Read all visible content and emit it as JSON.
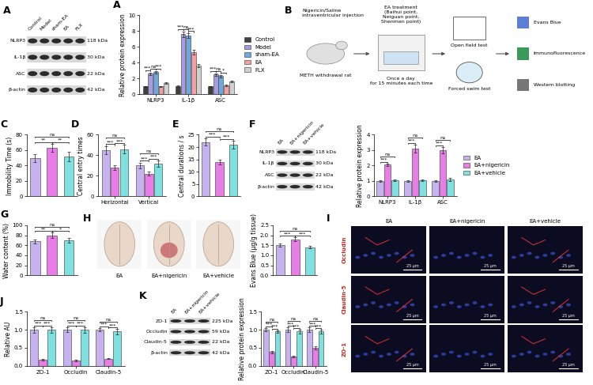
{
  "chart_data": [
    {
      "panel_label": "A",
      "type": "bar",
      "ylabel": "Relative protein expression",
      "categories": [
        "NLRP3",
        "IL-1β",
        "ASC"
      ],
      "series": [
        {
          "name": "Control",
          "color": "#404040",
          "values": [
            1.0,
            1.0,
            1.0
          ],
          "errors": [
            0.08,
            0.1,
            0.08
          ]
        },
        {
          "name": "Model",
          "color": "#a99be0",
          "values": [
            2.6,
            7.6,
            2.5
          ],
          "errors": [
            0.15,
            0.35,
            0.15
          ]
        },
        {
          "name": "sham-EA",
          "color": "#6fa8dc",
          "values": [
            2.8,
            7.4,
            2.3
          ],
          "errors": [
            0.15,
            0.3,
            0.15
          ]
        },
        {
          "name": "EA",
          "color": "#f4a0a0",
          "values": [
            1.0,
            5.3,
            1.1
          ],
          "errors": [
            0.08,
            0.3,
            0.1
          ]
        },
        {
          "name": "FLX",
          "color": "#d0d0d0",
          "values": [
            1.4,
            3.6,
            1.6
          ],
          "errors": [
            0.1,
            0.2,
            0.1
          ]
        }
      ],
      "ylim": [
        0,
        10
      ],
      "yticks": [
        0,
        2,
        4,
        6,
        8,
        10
      ],
      "legend": "right",
      "significance": [
        {
          "group": 0,
          "from": 0,
          "to": 1,
          "label": "***"
        },
        {
          "group": 0,
          "from": 1,
          "to": 2,
          "label": "ns"
        },
        {
          "group": 0,
          "from": 2,
          "to": 3,
          "label": "***"
        },
        {
          "group": 1,
          "from": 0,
          "to": 1,
          "label": "***"
        },
        {
          "group": 1,
          "from": 1,
          "to": 2,
          "label": "ns"
        },
        {
          "group": 1,
          "from": 2,
          "to": 3,
          "label": "***"
        },
        {
          "group": 2,
          "from": 0,
          "to": 1,
          "label": "***"
        },
        {
          "group": 2,
          "from": 2,
          "to": 3,
          "label": "*"
        },
        {
          "group": 2,
          "from": 1,
          "to": 2,
          "label": "ns"
        }
      ]
    },
    {
      "panel_label": "C",
      "type": "bar",
      "ylabel": "Immobility Time (s)",
      "categories": [
        null,
        null,
        null
      ],
      "values": [
        50,
        63,
        52
      ],
      "errors": [
        5,
        5,
        6
      ],
      "colors": [
        "#c7b2f0",
        "#e87de8",
        "#7fe0e0"
      ],
      "tick_labels": "y",
      "ylim": [
        0,
        80
      ],
      "yticks": [
        0,
        20,
        40,
        60,
        80
      ],
      "significance": [
        {
          "from": 0,
          "to": 1,
          "label": "**"
        },
        {
          "from": 1,
          "to": 2,
          "label": "**"
        },
        {
          "from": 0,
          "to": 2,
          "label": "ns"
        }
      ]
    },
    {
      "panel_label": "D",
      "type": "bar",
      "ylabel": "Central entry times",
      "categories": [
        "Horizontal",
        "Vertical"
      ],
      "series": [
        {
          "color": "#c7b2f0",
          "values": [
            45,
            30
          ],
          "errors": [
            4,
            3
          ]
        },
        {
          "color": "#e87de8",
          "values": [
            28,
            22
          ],
          "errors": [
            2,
            2
          ]
        },
        {
          "color": "#7fe0e0",
          "values": [
            46,
            32
          ],
          "errors": [
            4,
            3
          ]
        }
      ],
      "ylim": [
        0,
        60
      ],
      "yticks": [
        0,
        20,
        40,
        60
      ],
      "significance": [
        {
          "group": 0,
          "from": 0,
          "to": 1,
          "label": "***"
        },
        {
          "group": 0,
          "from": 1,
          "to": 2,
          "label": "***"
        },
        {
          "group": 0,
          "from": 0,
          "to": 2,
          "label": "ns"
        },
        {
          "group": 1,
          "from": 0,
          "to": 1,
          "label": "***"
        },
        {
          "group": 1,
          "from": 1,
          "to": 2,
          "label": "***"
        },
        {
          "group": 1,
          "from": 0,
          "to": 2,
          "label": "ns"
        }
      ]
    },
    {
      "panel_label": "E",
      "type": "bar",
      "ylabel": "Central durations / s",
      "categories": [
        null,
        null,
        null
      ],
      "values": [
        22,
        14,
        21
      ],
      "errors": [
        1.5,
        1,
        1.5
      ],
      "colors": [
        "#c7b2f0",
        "#e87de8",
        "#7fe0e0"
      ],
      "tick_labels": "y",
      "ylim": [
        0,
        25
      ],
      "yticks": [
        0,
        5,
        10,
        15,
        20,
        25
      ],
      "significance": [
        {
          "from": 0,
          "to": 1,
          "label": "***"
        },
        {
          "from": 1,
          "to": 2,
          "label": "***"
        },
        {
          "from": 0,
          "to": 2,
          "label": "ns"
        }
      ]
    },
    {
      "type": "bar",
      "ylabel": "Relative protein expression",
      "categories": [
        "NLRP3",
        "IL-1β",
        "ASC"
      ],
      "series": [
        {
          "name": "EA",
          "color": "#c7b2f0",
          "values": [
            1.0,
            1.0,
            1.0
          ],
          "errors": [
            0.05,
            0.06,
            0.06
          ]
        },
        {
          "name": "EA+nigericin",
          "color": "#e87de8",
          "values": [
            2.05,
            3.1,
            3.0
          ],
          "errors": [
            0.08,
            0.25,
            0.2
          ]
        },
        {
          "name": "EA+vehicle",
          "color": "#7fe0e0",
          "values": [
            1.05,
            1.05,
            1.1
          ],
          "errors": [
            0.06,
            0.06,
            0.08
          ]
        }
      ],
      "ylim": [
        0,
        4
      ],
      "yticks": [
        0,
        1,
        2,
        3,
        4
      ],
      "legend": "right",
      "significance": [
        {
          "group": 0,
          "from": 0,
          "to": 1,
          "label": "***"
        },
        {
          "group": 0,
          "from": 0,
          "to": 2,
          "label": "ns"
        },
        {
          "group": 1,
          "from": 0,
          "to": 1,
          "label": "***"
        },
        {
          "group": 1,
          "from": 0,
          "to": 2,
          "label": "ns"
        },
        {
          "group": 2,
          "from": 0,
          "to": 1,
          "label": "***"
        },
        {
          "group": 2,
          "from": 0,
          "to": 2,
          "label": "ns"
        }
      ]
    },
    {
      "panel_label": "G",
      "type": "bar",
      "ylabel": "Water content (%)",
      "categories": [
        null,
        null,
        null
      ],
      "values": [
        68,
        80,
        70
      ],
      "errors": [
        4,
        5,
        5
      ],
      "colors": [
        "#c7b2f0",
        "#e87de8",
        "#7fe0e0"
      ],
      "tick_labels": "y",
      "ylim": [
        0,
        100
      ],
      "yticks": [
        0,
        20,
        40,
        60,
        80,
        100
      ],
      "significance": [
        {
          "from": 0,
          "to": 1,
          "label": "**"
        },
        {
          "from": 1,
          "to": 2,
          "label": "*"
        },
        {
          "from": 0,
          "to": 2,
          "label": "ns"
        }
      ]
    },
    {
      "type": "bar",
      "ylabel": "Evans Blue (μg/g tissue)",
      "categories": [
        null,
        null,
        null
      ],
      "values": [
        1.5,
        1.8,
        1.4
      ],
      "errors": [
        0.07,
        0.1,
        0.05
      ],
      "colors": [
        "#c7b2f0",
        "#e87de8",
        "#7fe0e0"
      ],
      "tick_labels": "y",
      "ylim": [
        0,
        2.5
      ],
      "yticks": [
        {
          "value": 0,
          "label": "0.0"
        },
        0.5,
        {
          "value": 1,
          "label": "1.0"
        },
        1.5,
        {
          "value": 2,
          "label": "2.0"
        },
        2.5
      ],
      "significance": [
        {
          "from": 0,
          "to": 1,
          "label": "***"
        },
        {
          "from": 1,
          "to": 2,
          "label": "***"
        },
        {
          "from": 0,
          "to": 2,
          "label": "ns"
        }
      ]
    },
    {
      "panel_label": "J",
      "type": "bar",
      "ylabel": "Relative AU",
      "categories": [
        "ZO-1",
        "Occludin",
        "Claudin-5"
      ],
      "series": [
        {
          "color": "#c7b2f0",
          "values": [
            1.0,
            1.0,
            1.0
          ],
          "errors": [
            0.08,
            0.07,
            0.05
          ]
        },
        {
          "color": "#e87de8",
          "values": [
            0.17,
            0.15,
            0.2
          ],
          "errors": [
            0.02,
            0.02,
            0.02
          ]
        },
        {
          "color": "#7fe0e0",
          "values": [
            1.0,
            1.0,
            0.95
          ],
          "errors": [
            0.08,
            0.08,
            0.07
          ]
        }
      ],
      "ylim": [
        0,
        1.5
      ],
      "yticks": [
        {
          "value": 0,
          "label": "0.0"
        },
        0.5,
        {
          "value": 1,
          "label": "1.0"
        },
        1.5
      ],
      "significance": [
        {
          "group": 0,
          "from": 0,
          "to": 1,
          "label": "***"
        },
        {
          "group": 0,
          "from": 1,
          "to": 2,
          "label": "***"
        },
        {
          "group": 0,
          "from": 0,
          "to": 2,
          "label": "ns"
        },
        {
          "group": 1,
          "from": 0,
          "to": 1,
          "label": "***"
        },
        {
          "group": 1,
          "from": 1,
          "to": 2,
          "label": "***"
        },
        {
          "group": 1,
          "from": 0,
          "to": 2,
          "label": "ns"
        },
        {
          "group": 2,
          "from": 0,
          "to": 1,
          "label": "***"
        },
        {
          "group": 2,
          "from": 1,
          "to": 2,
          "label": "***"
        },
        {
          "group": 2,
          "from": 0,
          "to": 2,
          "label": "ns"
        }
      ]
    },
    {
      "type": "bar",
      "ylabel": "Relative protein expression",
      "categories": [
        "ZO-1",
        "Occludin",
        "Claudin-5"
      ],
      "series": [
        {
          "color": "#c7b2f0",
          "values": [
            1.0,
            1.0,
            1.0
          ],
          "errors": [
            0.05,
            0.06,
            0.06
          ]
        },
        {
          "color": "#e87de8",
          "values": [
            0.38,
            0.26,
            0.5
          ],
          "errors": [
            0.03,
            0.02,
            0.05
          ]
        },
        {
          "color": "#7fe0e0",
          "values": [
            0.95,
            0.95,
            0.95
          ],
          "errors": [
            0.04,
            0.05,
            0.05
          ]
        }
      ],
      "ylim": [
        0,
        1.5
      ],
      "yticks": [
        {
          "value": 0,
          "label": "0.0"
        },
        0.5,
        {
          "value": 1,
          "label": "1.0"
        },
        1.5
      ],
      "significance": [
        {
          "group": 0,
          "from": 0,
          "to": 1,
          "label": "***"
        },
        {
          "group": 0,
          "from": 1,
          "to": 2,
          "label": "***"
        },
        {
          "group": 0,
          "from": 0,
          "to": 2,
          "label": "ns"
        },
        {
          "group": 1,
          "from": 0,
          "to": 1,
          "label": "***"
        },
        {
          "group": 1,
          "from": 1,
          "to": 2,
          "label": "***"
        },
        {
          "group": 1,
          "from": 0,
          "to": 2,
          "label": "ns"
        },
        {
          "group": 2,
          "from": 0,
          "to": 1,
          "label": "***"
        },
        {
          "group": 2,
          "from": 1,
          "to": 2,
          "label": "***"
        },
        {
          "group": 2,
          "from": 0,
          "to": 2,
          "label": "ns"
        }
      ]
    }
  ],
  "blots": [
    {
      "panel_label": "A",
      "lanes": [
        "Control",
        "Model",
        "sham-EA",
        "EA",
        "FLX"
      ],
      "rows": [
        {
          "protein": "NLRP3",
          "size": "118 kDa"
        },
        {
          "protein": "IL-1β",
          "size": "30 kDa"
        },
        {
          "protein": "ASC",
          "size": "22 kDa"
        },
        {
          "protein": "β-actin",
          "size": "42 kDa"
        }
      ]
    },
    {
      "panel_label": "F",
      "lanes": [
        "EA",
        "EA+nigericin",
        "EA+vehicle"
      ],
      "rows": [
        {
          "protein": "NLRP3",
          "size": "118 kDa"
        },
        {
          "protein": "IL-1β",
          "size": "30 kDa"
        },
        {
          "protein": "ASC",
          "size": "22 kDa"
        },
        {
          "protein": "β-actin",
          "size": "42 kDa"
        }
      ]
    },
    {
      "panel_label": "K",
      "lanes": [
        "EA",
        "EA+nigericin",
        "EA+vehicle"
      ],
      "rows": [
        {
          "protein": "ZO-1",
          "size": "225 kDa"
        },
        {
          "protein": "Occludin",
          "size": "59 kDa"
        },
        {
          "protein": "Claudin-5",
          "size": "22 kDa"
        },
        {
          "protein": "β-actin",
          "size": "42 kDa"
        }
      ]
    }
  ],
  "diagram": {
    "panel_label": "B",
    "injection": "Nigericin/Saline\nintraventricular injection",
    "subject": "METH withdrawal rat",
    "treatment": "EA treatment\n(Baihui point,\nNeiguan point,\nShenmen point)",
    "schedule": "Once a day\nfor 15 minutes each time",
    "tests": [
      "Open field test",
      "Forced swim test"
    ],
    "outcomes": [
      "Evans Blue",
      "Immunofluorescence",
      "Western blotting"
    ]
  },
  "brain_images": {
    "panel_label": "H",
    "groups": [
      "EA",
      "EA+nigericin",
      "EA+vehicle"
    ]
  },
  "immunofluorescence": {
    "panel_label": "I",
    "groups": [
      "EA",
      "EA+nigericin",
      "EA+vehicle"
    ],
    "markers": [
      "Occludin",
      "Claudin-5",
      "ZO-1"
    ],
    "scale_bar": "25 μm"
  }
}
